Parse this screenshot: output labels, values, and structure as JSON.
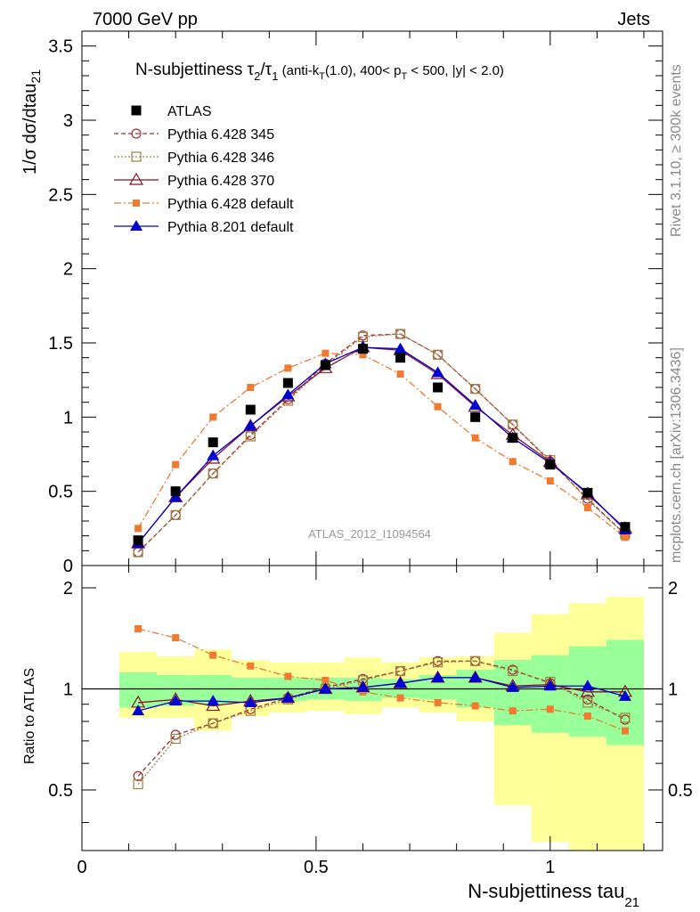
{
  "header": {
    "left": "7000 GeV pp",
    "right": "Jets",
    "watermark": "ATLAS_2012_I1094564"
  },
  "side_labels": {
    "rivet": "Rivet 3.1.10, ≥ 300k events",
    "mcplots": "mcplots.cern.ch [arXiv:1306.3436]"
  },
  "title": {
    "main": "N-subjettiness τ",
    "sub2": "2",
    "slash": "/τ",
    "sub1": "1",
    "cond_a": " (anti-k",
    "cond_T1": "T",
    "cond_b": "(1.0), 400< p",
    "cond_T2": "T",
    "cond_c": " < 500, |y| < 2.0)"
  },
  "axes": {
    "ylabel_main": "1/σ dσ/dtau",
    "ylabel_main_sub": "21",
    "ylabel_ratio": "Ratio to ATLAS",
    "xlabel": "N-subjettiness tau",
    "xlabel_sub": "21"
  },
  "colors": {
    "atlas": "#000000",
    "p345": "#a0303a",
    "p346": "#a08040",
    "p370": "#8b1028",
    "p6def": "#f07a30",
    "p8def": "#0000d0",
    "band_inner": "#99ff99",
    "band_outer": "#ffff99"
  },
  "chart_data": {
    "type": "line",
    "x": [
      0.12,
      0.2,
      0.28,
      0.36,
      0.44,
      0.52,
      0.6,
      0.68,
      0.76,
      0.84,
      0.92,
      1.0,
      1.08,
      1.16
    ],
    "xlim": [
      0,
      1.24
    ],
    "ylim_main": [
      0,
      3.6
    ],
    "ylim_ratio": [
      0.33,
      2.33
    ],
    "xticks": [
      "0",
      "0.5",
      "1"
    ],
    "yticks_main": [
      "0",
      "0.5",
      "1",
      "1.5",
      "2",
      "2.5",
      "3",
      "3.5"
    ],
    "yticks_ratio": [
      "0.5",
      "1",
      "2"
    ],
    "series": [
      {
        "name": "ATLAS",
        "style": "atlas",
        "values": [
          0.17,
          0.5,
          0.83,
          1.05,
          1.23,
          1.35,
          1.46,
          1.4,
          1.2,
          1.0,
          0.86,
          0.68,
          0.49,
          0.26
        ]
      },
      {
        "name": "Pythia 6.428 345",
        "style": "p345",
        "values": [
          0.09,
          0.34,
          0.62,
          0.88,
          1.12,
          1.36,
          1.55,
          1.56,
          1.42,
          1.19,
          0.95,
          0.7,
          0.45,
          0.21
        ]
      },
      {
        "name": "Pythia 6.428 346",
        "style": "p346",
        "values": [
          0.09,
          0.34,
          0.62,
          0.87,
          1.11,
          1.35,
          1.54,
          1.56,
          1.42,
          1.19,
          0.95,
          0.71,
          0.44,
          0.21
        ]
      },
      {
        "name": "Pythia 6.428 370",
        "style": "p370",
        "values": [
          0.15,
          0.46,
          0.72,
          0.94,
          1.14,
          1.33,
          1.47,
          1.45,
          1.29,
          1.07,
          0.88,
          0.7,
          0.48,
          0.25
        ]
      },
      {
        "name": "Pythia 6.428 default",
        "style": "p6def",
        "values": [
          0.25,
          0.68,
          1.0,
          1.2,
          1.33,
          1.43,
          1.42,
          1.29,
          1.07,
          0.86,
          0.7,
          0.57,
          0.39,
          0.19
        ]
      },
      {
        "name": "Pythia 8.201 default",
        "style": "p8def",
        "values": [
          0.15,
          0.46,
          0.74,
          0.94,
          1.15,
          1.36,
          1.47,
          1.46,
          1.3,
          1.08,
          0.86,
          0.69,
          0.49,
          0.24
        ]
      }
    ],
    "ratio_series": [
      {
        "name": "Pythia 6.428 345",
        "style": "p345",
        "values": [
          0.55,
          0.73,
          0.79,
          0.87,
          0.94,
          1.01,
          1.07,
          1.13,
          1.21,
          1.21,
          1.14,
          1.04,
          0.93,
          0.81
        ]
      },
      {
        "name": "Pythia 6.428 346",
        "style": "p346",
        "values": [
          0.52,
          0.71,
          0.79,
          0.86,
          0.93,
          1.0,
          1.06,
          1.13,
          1.2,
          1.21,
          1.13,
          1.05,
          0.91,
          0.82
        ]
      },
      {
        "name": "Pythia 6.428 370",
        "style": "p370",
        "values": [
          0.91,
          0.93,
          0.89,
          0.92,
          0.94,
          1.0,
          1.01,
          1.04,
          1.08,
          1.08,
          1.02,
          1.03,
          0.98,
          0.98
        ]
      },
      {
        "name": "Pythia 6.428 default",
        "style": "p6def",
        "values": [
          1.51,
          1.42,
          1.26,
          1.17,
          1.09,
          1.06,
          0.98,
          0.94,
          0.91,
          0.89,
          0.86,
          0.87,
          0.83,
          0.75
        ]
      },
      {
        "name": "Pythia 8.201 default",
        "style": "p8def",
        "values": [
          0.86,
          0.92,
          0.92,
          0.91,
          0.94,
          1.0,
          1.01,
          1.04,
          1.08,
          1.08,
          1.01,
          1.02,
          1.02,
          0.95
        ]
      }
    ],
    "ratio_bands": {
      "x_edges": [
        0.08,
        0.16,
        0.24,
        0.32,
        0.4,
        0.48,
        0.56,
        0.64,
        0.72,
        0.8,
        0.88,
        0.96,
        1.04,
        1.12,
        1.2
      ],
      "inner_low": [
        0.88,
        0.89,
        0.9,
        0.92,
        0.92,
        0.93,
        0.92,
        0.94,
        0.93,
        0.88,
        0.78,
        0.74,
        0.72,
        0.68
      ],
      "inner_high": [
        1.12,
        1.1,
        1.1,
        1.08,
        1.08,
        1.08,
        1.08,
        1.07,
        1.1,
        1.14,
        1.22,
        1.26,
        1.34,
        1.4
      ],
      "outer_low": [
        0.82,
        0.82,
        0.75,
        0.83,
        0.85,
        0.86,
        0.84,
        0.88,
        0.85,
        0.8,
        0.45,
        0.35,
        0.33,
        0.33
      ],
      "outer_high": [
        1.29,
        1.25,
        1.31,
        1.22,
        1.2,
        1.2,
        1.24,
        1.2,
        1.24,
        1.25,
        1.47,
        1.67,
        1.8,
        1.88
      ]
    }
  }
}
